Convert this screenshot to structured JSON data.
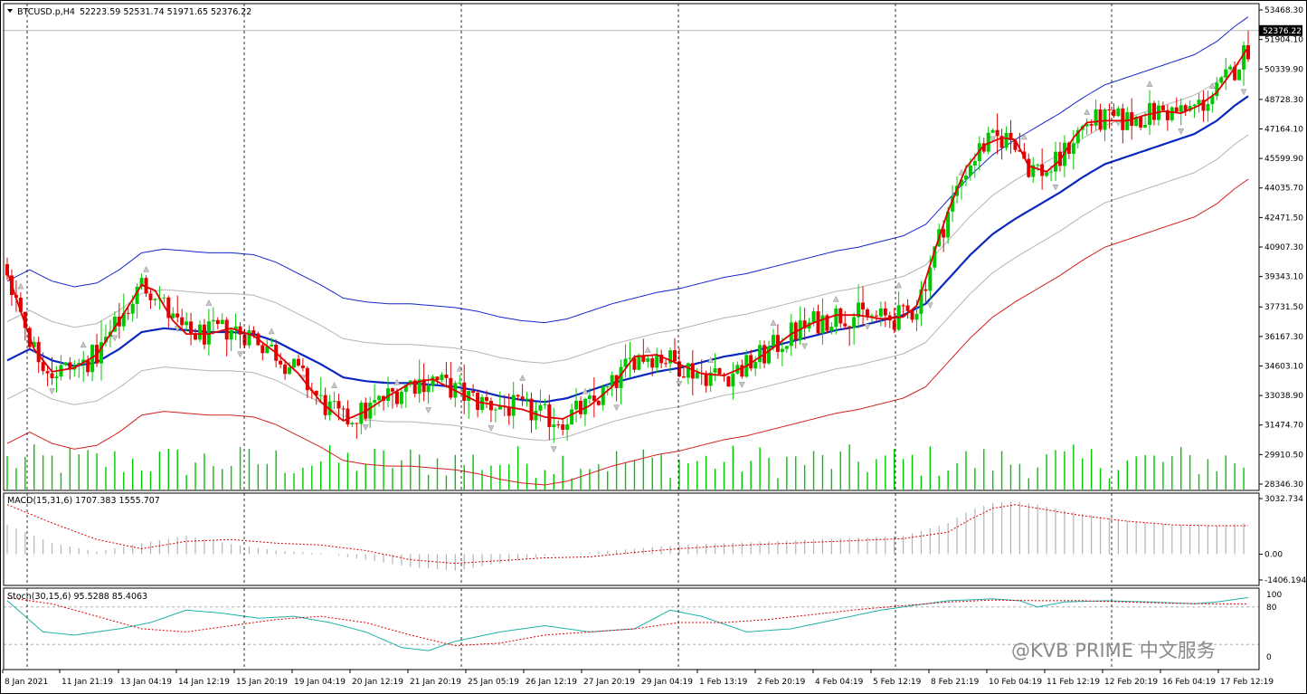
{
  "header": {
    "symbol_info": "BTCUSD.p,H4",
    "ohlc": "52223.59 52531.74 51971.65 52376.22"
  },
  "current_price": "52376.22",
  "watermark": "@KVB PRIME 中文服务",
  "colors": {
    "bull": "#00c800",
    "bear": "#e00000",
    "ma_fast": "#e00000",
    "ma_mid": "#0a28c0",
    "band_upper": "#1426c8",
    "band_lower": "#d21e1e",
    "band_inner": "#b4b4b4",
    "volume": "#00c800",
    "macd_hist": "#b4b4b4",
    "macd_signal": "#e00000",
    "stoch_main": "#20b2aa",
    "stoch_signal": "#e00000"
  },
  "chart_data": [
    {
      "type": "candlestick",
      "title": "BTCUSD.p,H4",
      "y_ticks": [
        "53468.30",
        "51904.10",
        "50339.90",
        "48728.30",
        "47164.10",
        "45599.90",
        "44035.70",
        "42471.50",
        "40907.30",
        "39343.10",
        "37731.50",
        "36167.30",
        "34603.10",
        "33038.90",
        "31474.70",
        "29910.50",
        "28346.30"
      ],
      "ylim": [
        28346.3,
        53468.3
      ],
      "x_tick_labels": [
        "8 Jan 2021",
        "11 Jan 21:19",
        "13 Jan 04:19",
        "14 Jan 12:19",
        "15 Jan 20:19",
        "19 Jan 04:19",
        "20 Jan 12:19",
        "21 Jan 20:19",
        "25 Jan 05:19",
        "26 Jan 12:19",
        "27 Jan 20:19",
        "29 Jan 04:19",
        "1 Feb 13:19",
        "2 Feb 20:19",
        "4 Feb 04:19",
        "5 Feb 12:19",
        "8 Feb 21:19",
        "10 Feb 04:19",
        "11 Feb 12:19",
        "12 Feb 20:19",
        "16 Feb 04:19",
        "17 Feb 12:19"
      ],
      "grid": "vertical dotted day separators",
      "ma_fast_points": [
        [
          0,
          39600
        ],
        [
          3,
          37500
        ],
        [
          6,
          35500
        ],
        [
          10,
          34300
        ],
        [
          15,
          34500
        ],
        [
          20,
          35200
        ],
        [
          25,
          37000
        ],
        [
          30,
          38900
        ],
        [
          33,
          38600
        ],
        [
          37,
          37000
        ],
        [
          40,
          36300
        ],
        [
          45,
          36300
        ],
        [
          50,
          36600
        ],
        [
          55,
          36200
        ],
        [
          60,
          35300
        ],
        [
          65,
          34200
        ],
        [
          70,
          32700
        ],
        [
          75,
          31700
        ],
        [
          80,
          32200
        ],
        [
          85,
          33000
        ],
        [
          90,
          33700
        ],
        [
          95,
          33900
        ],
        [
          100,
          33300
        ],
        [
          105,
          32700
        ],
        [
          110,
          32500
        ],
        [
          115,
          32300
        ],
        [
          120,
          31900
        ],
        [
          124,
          31800
        ],
        [
          130,
          32500
        ],
        [
          135,
          33500
        ],
        [
          140,
          35100
        ],
        [
          145,
          35200
        ],
        [
          150,
          34700
        ],
        [
          155,
          34200
        ],
        [
          160,
          34100
        ],
        [
          165,
          34600
        ],
        [
          170,
          35400
        ],
        [
          175,
          36300
        ],
        [
          180,
          36900
        ],
        [
          185,
          37300
        ],
        [
          190,
          37300
        ],
        [
          195,
          37100
        ],
        [
          200,
          37200
        ],
        [
          203,
          37800
        ],
        [
          205,
          39200
        ],
        [
          207,
          40700
        ],
        [
          210,
          42800
        ],
        [
          214,
          45100
        ],
        [
          218,
          46300
        ],
        [
          222,
          46700
        ],
        [
          225,
          46600
        ],
        [
          228,
          45200
        ],
        [
          232,
          44900
        ],
        [
          235,
          45500
        ],
        [
          238,
          46700
        ],
        [
          241,
          47500
        ],
        [
          245,
          47600
        ],
        [
          250,
          47600
        ],
        [
          254,
          47900
        ],
        [
          258,
          48100
        ],
        [
          262,
          48000
        ],
        [
          266,
          48400
        ],
        [
          270,
          49100
        ],
        [
          274,
          50400
        ],
        [
          277,
          51500
        ]
      ],
      "ma_mid_points": [
        [
          0,
          34900
        ],
        [
          5,
          35500
        ],
        [
          10,
          34900
        ],
        [
          15,
          34600
        ],
        [
          20,
          34800
        ],
        [
          25,
          35500
        ],
        [
          30,
          36400
        ],
        [
          35,
          36600
        ],
        [
          40,
          36500
        ],
        [
          45,
          36400
        ],
        [
          50,
          36400
        ],
        [
          55,
          36300
        ],
        [
          60,
          35900
        ],
        [
          65,
          35300
        ],
        [
          70,
          34700
        ],
        [
          75,
          34000
        ],
        [
          80,
          33800
        ],
        [
          85,
          33700
        ],
        [
          90,
          33700
        ],
        [
          95,
          33600
        ],
        [
          100,
          33500
        ],
        [
          105,
          33300
        ],
        [
          110,
          33000
        ],
        [
          115,
          32800
        ],
        [
          120,
          32700
        ],
        [
          125,
          32900
        ],
        [
          130,
          33300
        ],
        [
          135,
          33700
        ],
        [
          140,
          34000
        ],
        [
          145,
          34300
        ],
        [
          150,
          34500
        ],
        [
          155,
          34800
        ],
        [
          160,
          35100
        ],
        [
          165,
          35300
        ],
        [
          170,
          35600
        ],
        [
          175,
          35900
        ],
        [
          180,
          36200
        ],
        [
          185,
          36500
        ],
        [
          190,
          36700
        ],
        [
          195,
          37000
        ],
        [
          200,
          37300
        ],
        [
          205,
          37900
        ],
        [
          210,
          39200
        ],
        [
          215,
          40500
        ],
        [
          220,
          41600
        ],
        [
          225,
          42400
        ],
        [
          230,
          43100
        ],
        [
          235,
          43800
        ],
        [
          240,
          44600
        ],
        [
          245,
          45300
        ],
        [
          250,
          45700
        ],
        [
          255,
          46100
        ],
        [
          260,
          46500
        ],
        [
          265,
          46900
        ],
        [
          270,
          47600
        ],
        [
          274,
          48400
        ],
        [
          277,
          48900
        ]
      ],
      "band_offset": 2050,
      "band_outer_upper_offset": 4200,
      "band_outer_lower_offset": 4400,
      "volume_relative_max": 1.0
    },
    {
      "type": "bar",
      "title": "MACD(15,31,6) 1707.383 1555.707",
      "y_ticks": [
        "3032.734",
        "0.00",
        "-1406.194"
      ],
      "ylim": [
        -1406.194,
        3032.734
      ],
      "histogram_points": [
        [
          0,
          1600
        ],
        [
          10,
          600
        ],
        [
          20,
          150
        ],
        [
          30,
          600
        ],
        [
          40,
          1000
        ],
        [
          50,
          550
        ],
        [
          60,
          200
        ],
        [
          70,
          50
        ],
        [
          80,
          -300
        ],
        [
          90,
          -700
        ],
        [
          100,
          -900
        ],
        [
          110,
          -500
        ],
        [
          120,
          -100
        ],
        [
          130,
          100
        ],
        [
          140,
          300
        ],
        [
          150,
          500
        ],
        [
          160,
          600
        ],
        [
          170,
          700
        ],
        [
          180,
          800
        ],
        [
          190,
          900
        ],
        [
          200,
          1000
        ],
        [
          210,
          1700
        ],
        [
          215,
          2400
        ],
        [
          220,
          2800
        ],
        [
          225,
          2900
        ],
        [
          230,
          2700
        ],
        [
          240,
          2200
        ],
        [
          250,
          1800
        ],
        [
          260,
          1600
        ],
        [
          270,
          1550
        ],
        [
          277,
          1707
        ]
      ],
      "signal_points": [
        [
          0,
          2700
        ],
        [
          10,
          1700
        ],
        [
          20,
          800
        ],
        [
          30,
          300
        ],
        [
          40,
          700
        ],
        [
          50,
          800
        ],
        [
          60,
          600
        ],
        [
          70,
          500
        ],
        [
          80,
          200
        ],
        [
          90,
          -300
        ],
        [
          100,
          -500
        ],
        [
          110,
          -350
        ],
        [
          120,
          -200
        ],
        [
          130,
          -150
        ],
        [
          140,
          100
        ],
        [
          150,
          300
        ],
        [
          160,
          450
        ],
        [
          170,
          550
        ],
        [
          180,
          650
        ],
        [
          190,
          750
        ],
        [
          200,
          850
        ],
        [
          210,
          1200
        ],
        [
          215,
          1900
        ],
        [
          220,
          2500
        ],
        [
          225,
          2700
        ],
        [
          230,
          2500
        ],
        [
          240,
          2100
        ],
        [
          250,
          1800
        ],
        [
          260,
          1600
        ],
        [
          270,
          1550
        ],
        [
          277,
          1555
        ]
      ]
    },
    {
      "type": "line",
      "title": "Stoch(30,15,6) 95.5288 85.4063",
      "y_ticks": [
        "100",
        "80",
        "0"
      ],
      "ylim": [
        0,
        100
      ],
      "levels": [
        80,
        20
      ],
      "main_points": [
        [
          0,
          90
        ],
        [
          8,
          40
        ],
        [
          15,
          35
        ],
        [
          25,
          45
        ],
        [
          32,
          55
        ],
        [
          40,
          75
        ],
        [
          48,
          70
        ],
        [
          56,
          62
        ],
        [
          64,
          65
        ],
        [
          72,
          55
        ],
        [
          80,
          40
        ],
        [
          88,
          15
        ],
        [
          94,
          10
        ],
        [
          100,
          25
        ],
        [
          110,
          40
        ],
        [
          120,
          50
        ],
        [
          130,
          40
        ],
        [
          140,
          45
        ],
        [
          148,
          75
        ],
        [
          155,
          65
        ],
        [
          165,
          40
        ],
        [
          175,
          45
        ],
        [
          185,
          60
        ],
        [
          195,
          75
        ],
        [
          205,
          85
        ],
        [
          210,
          90
        ],
        [
          220,
          93
        ],
        [
          226,
          90
        ],
        [
          230,
          80
        ],
        [
          236,
          88
        ],
        [
          245,
          90
        ],
        [
          255,
          88
        ],
        [
          265,
          85
        ],
        [
          270,
          88
        ],
        [
          277,
          95
        ]
      ],
      "signal_points": [
        [
          0,
          95
        ],
        [
          10,
          85
        ],
        [
          20,
          65
        ],
        [
          30,
          45
        ],
        [
          40,
          40
        ],
        [
          50,
          50
        ],
        [
          60,
          60
        ],
        [
          70,
          65
        ],
        [
          80,
          55
        ],
        [
          90,
          35
        ],
        [
          100,
          18
        ],
        [
          110,
          22
        ],
        [
          120,
          35
        ],
        [
          130,
          40
        ],
        [
          140,
          45
        ],
        [
          150,
          55
        ],
        [
          160,
          55
        ],
        [
          170,
          60
        ],
        [
          180,
          68
        ],
        [
          190,
          76
        ],
        [
          200,
          82
        ],
        [
          210,
          88
        ],
        [
          220,
          91
        ],
        [
          230,
          90
        ],
        [
          240,
          90
        ],
        [
          250,
          88
        ],
        [
          260,
          86
        ],
        [
          270,
          85
        ],
        [
          277,
          85
        ]
      ]
    }
  ]
}
